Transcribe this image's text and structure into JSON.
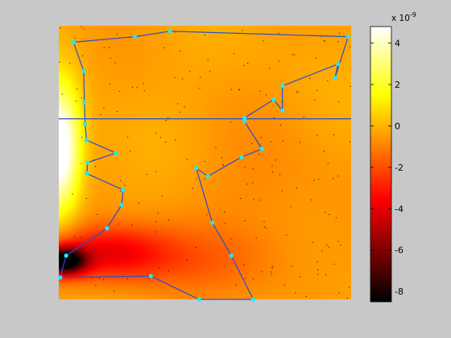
{
  "chart_data": {
    "type": "heatmap",
    "title": "",
    "xlabel": "",
    "ylabel": "",
    "colormap": "hot",
    "background_color": "#c8c8c8",
    "polyline_color": "#2a4bd4",
    "marker_color": "#22e8ff",
    "colorbar": {
      "clim": [
        -8.5,
        4.8
      ],
      "exponent_label": "x 10",
      "exponent_power": "-9",
      "ticks": [
        4,
        2,
        0,
        -2,
        -4,
        -6,
        -8
      ],
      "tick_labels": [
        "4",
        "2",
        "0",
        "-2",
        "-4",
        "-6",
        "-8"
      ]
    },
    "field": {
      "baseline": -0.3,
      "sources": [
        {
          "x": 0.0,
          "y": 0.55,
          "amplitude": 6.5,
          "sx": 0.05,
          "sy": 0.16
        },
        {
          "x": 0.02,
          "y": 0.14,
          "amplitude": -8.3,
          "sx": 0.05,
          "sy": 0.035
        },
        {
          "x": 0.16,
          "y": 0.17,
          "amplitude": -3.2,
          "sx": 0.15,
          "sy": 0.07
        },
        {
          "x": 0.42,
          "y": 0.14,
          "amplitude": -1.0,
          "sx": 0.25,
          "sy": 0.09
        },
        {
          "x": 0.7,
          "y": 0.35,
          "amplitude": -0.5,
          "sx": 0.2,
          "sy": 0.2
        }
      ]
    },
    "series": [
      {
        "values": [
          [
            0.005,
            0.08
          ],
          [
            0.315,
            0.085
          ],
          [
            0.48,
            0.0
          ],
          [
            0.665,
            0.0
          ],
          [
            0.59,
            0.16
          ],
          [
            0.525,
            0.28
          ],
          [
            0.47,
            0.48
          ],
          [
            0.51,
            0.45
          ],
          [
            0.625,
            0.52
          ],
          [
            0.695,
            0.55
          ],
          [
            0.635,
            0.65
          ],
          [
            0.635,
            0.663
          ],
          [
            0.735,
            0.73
          ],
          [
            0.765,
            0.69
          ],
          [
            0.765,
            0.78
          ],
          [
            0.955,
            0.86
          ],
          [
            0.945,
            0.81
          ],
          [
            0.99,
            0.96
          ],
          [
            0.38,
            0.98
          ],
          [
            0.26,
            0.96
          ],
          [
            0.05,
            0.94
          ],
          [
            0.085,
            0.835
          ],
          [
            0.088,
            0.72
          ],
          [
            0.09,
            0.64
          ],
          [
            0.095,
            0.582
          ],
          [
            0.195,
            0.535
          ],
          [
            0.099,
            0.5
          ],
          [
            0.096,
            0.46
          ],
          [
            0.22,
            0.4
          ],
          [
            0.215,
            0.345
          ],
          [
            0.165,
            0.26
          ],
          [
            0.025,
            0.16
          ],
          [
            0.005,
            0.08
          ]
        ]
      },
      {
        "values": [
          [
            0.0,
            0.66
          ],
          [
            1.0,
            0.66
          ]
        ]
      }
    ]
  }
}
